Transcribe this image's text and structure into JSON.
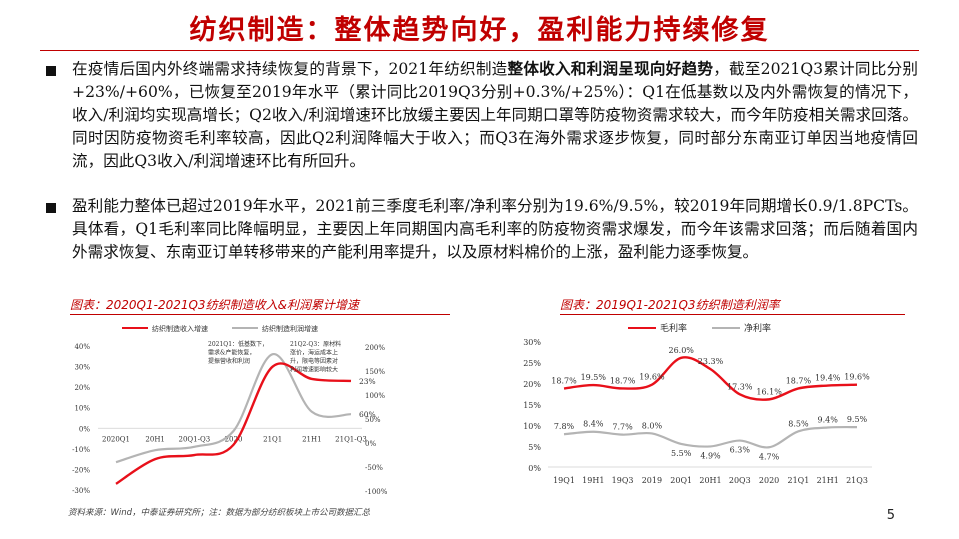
{
  "slide": {
    "title": "纺织制造：整体趋势向好，盈利能力持续修复",
    "page_number": "5",
    "source": "资料来源：Wind，中泰证券研究所；注：数据为部分纺织板块上市公司数据汇总"
  },
  "bullets": [
    {
      "before": "在疫情后国内外终端需求持续恢复的背景下，2021年纺织制造",
      "bold": "整体收入和利润呈现向好趋势",
      "after": "，截至2021Q3累计同比分别+23%/+60%，已恢复至2019年水平（累计同比2019Q3分别+0.3%/+25%）：Q1在低基数以及内外需恢复的情况下，收入/利润均实现高增长；Q2收入/利润增速环比放缓主要因上年同期口罩等防疫物资需求较大，而今年防疫相关需求回落。同时因防疫物资毛利率较高，因此Q2利润降幅大于收入；而Q3在海外需求逐步恢复，同时部分东南亚订单因当地疫情回流，因此Q3收入/利润增速环比有所回升。"
    },
    {
      "before": "盈利能力整体已超过2019年水平，2021前三季度毛利率/净利率分别为19.6%/9.5%，较2019年同期增长0.9/1.8PCTs。具体看，Q1毛利率同比降幅明显，主要因上年同期国内高毛利率的防疫物资需求爆发，而今年该需求回落；而后随着国内外需求恢复、东南亚订单转移带来的产能利用率提升，以及原材料棉价的上涨，盈利能力逐季恢复。",
      "bold": "",
      "after": ""
    }
  ],
  "colors": {
    "accent": "#c00000",
    "red_line": "#e8101a",
    "gray_line": "#b4b4b4"
  },
  "chart_data": [
    {
      "type": "line",
      "title": "图表：2020Q1-2021Q3纺织制造收入&利润累计增速",
      "categories": [
        "2020Q1",
        "20H1",
        "20Q1-Q3",
        "2020",
        "21Q1",
        "21H1",
        "21Q1-Q3"
      ],
      "series": [
        {
          "name": "纺织制造收入增速",
          "axis": "left",
          "values": [
            -27,
            -15,
            -13,
            -8,
            30,
            24,
            23
          ]
        },
        {
          "name": "纺织制造利润增速",
          "axis": "right",
          "values": [
            -40,
            -15,
            -8,
            25,
            185,
            65,
            60
          ]
        }
      ],
      "ylim_left": [
        -30,
        40
      ],
      "yticks_left": [
        "40%",
        "30%",
        "20%",
        "10%",
        "0%",
        "-10%",
        "-20%",
        "-30%"
      ],
      "ylim_right": [
        -100,
        200
      ],
      "yticks_right": [
        "200%",
        "150%",
        "100%",
        "50%",
        "0%",
        "-50%",
        "-100%"
      ],
      "end_labels": [
        "23%",
        "60%"
      ],
      "annotations": [
        "2021Q1：低基数下，需求&产能恢复，提振营收和利润",
        "21Q2-Q3：原材料涨价，海运成本上升，限电等因素对利润增速影响较大"
      ],
      "legend": "top",
      "grid": false
    },
    {
      "type": "line",
      "title": "图表：2019Q1-2021Q3纺织制造利润率",
      "categories": [
        "19Q1",
        "19H1",
        "19Q3",
        "2019",
        "20Q1",
        "20H1",
        "20Q3",
        "2020",
        "21Q1",
        "21H1",
        "21Q3"
      ],
      "series": [
        {
          "name": "毛利率",
          "values": [
            18.7,
            19.5,
            18.7,
            19.6,
            26.0,
            23.3,
            17.3,
            16.1,
            18.7,
            19.4,
            19.6
          ],
          "labels": [
            "18.7%",
            "19.5%",
            "18.7%",
            "19.6%",
            "26.0%",
            "23.3%",
            "17.3%",
            "16.1%",
            "18.7%",
            "19.4%",
            "19.6%"
          ]
        },
        {
          "name": "净利率",
          "values": [
            7.8,
            8.4,
            7.7,
            8.0,
            5.5,
            4.9,
            6.3,
            4.7,
            8.5,
            9.4,
            9.5
          ],
          "labels": [
            "7.8%",
            "8.4%",
            "7.7%",
            "8.0%",
            "5.5%",
            "4.9%",
            "6.3%",
            "4.7%",
            "8.5%",
            "9.4%",
            "9.5%"
          ]
        }
      ],
      "ylim": [
        0,
        30
      ],
      "yticks": [
        "30%",
        "25%",
        "20%",
        "15%",
        "10%",
        "5%",
        "0%"
      ],
      "legend": "top",
      "grid": false
    }
  ]
}
